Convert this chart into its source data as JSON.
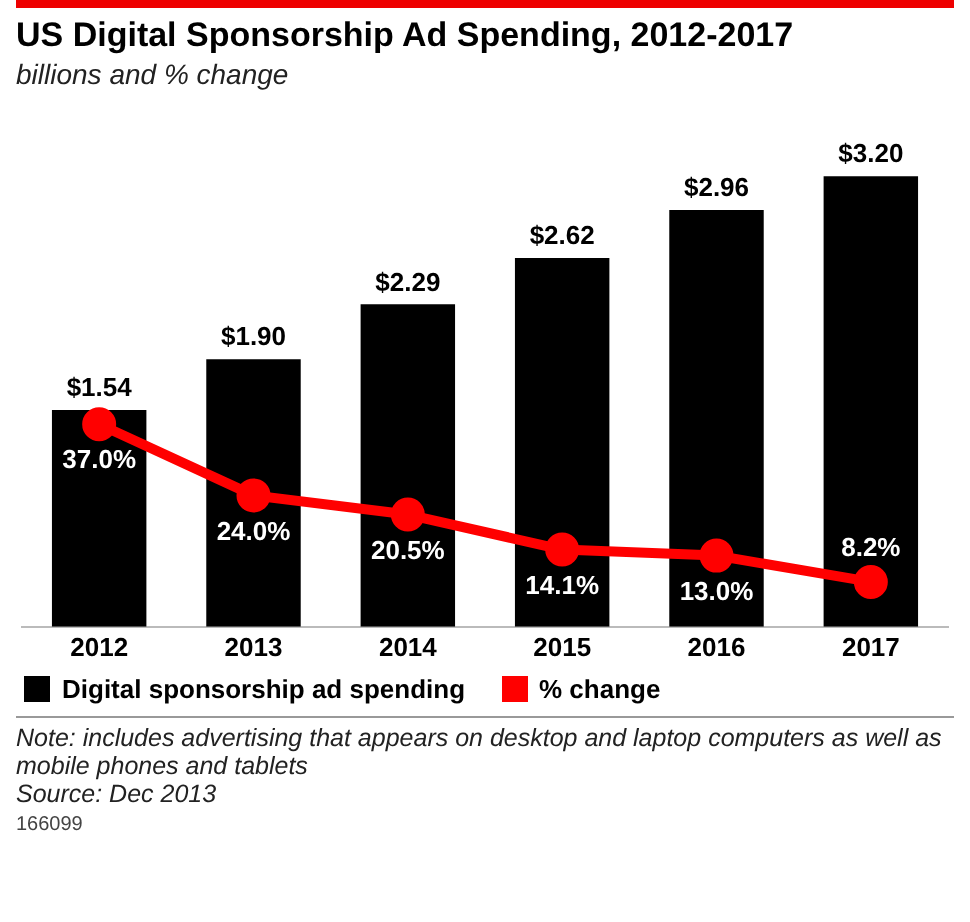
{
  "chart_data": {
    "type": "bar",
    "title": "US Digital Sponsorship Ad Spending, 2012-2017",
    "subtitle": "billions and % change",
    "categories": [
      "2012",
      "2013",
      "2014",
      "2015",
      "2016",
      "2017"
    ],
    "series": [
      {
        "name": "Digital sponsorship ad spending",
        "color": "#000000",
        "values": [
          1.54,
          1.9,
          2.29,
          2.62,
          2.96,
          3.2
        ],
        "value_labels": [
          "$1.54",
          "$1.90",
          "$2.29",
          "$2.62",
          "$2.96",
          "$3.20"
        ]
      },
      {
        "name": "% change",
        "type": "line",
        "axis": "y2",
        "color": "#ff0000",
        "values": [
          37.0,
          24.0,
          20.5,
          14.1,
          13.0,
          8.2
        ],
        "value_labels": [
          "37.0%",
          "24.0%",
          "20.5%",
          "14.1%",
          "13.0%",
          "8.2%"
        ]
      }
    ],
    "tick_labels": "x",
    "legend": "bottom",
    "marker": "circle",
    "line_style": "solid",
    "grid": false,
    "annotations": [
      "Note: includes advertising that appears on desktop and laptop computers as well as mobile phones and tablets",
      "Source: Dec 2013",
      "166099"
    ]
  }
}
